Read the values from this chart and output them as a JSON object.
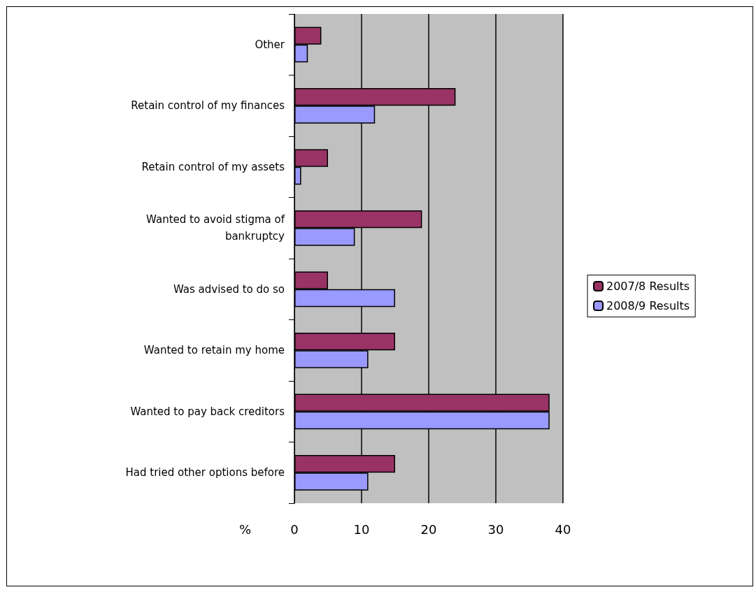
{
  "chart_data": {
    "type": "bar",
    "orientation": "horizontal",
    "xlabel": "%",
    "categories": [
      "Other",
      "Retain control of my finances",
      "Retain control of my assets",
      "Wanted to avoid stigma of bankruptcy",
      "Was advised to do so",
      "Wanted to retain my home",
      "Wanted to pay back creditors",
      "Had tried other options before"
    ],
    "series": [
      {
        "name": "2007/8 Results",
        "color": "#993366",
        "values": [
          4,
          24,
          5,
          19,
          5,
          15,
          38,
          15
        ]
      },
      {
        "name": "2008/9 Results",
        "color": "#9999ff",
        "values": [
          2,
          12,
          1,
          9,
          15,
          11,
          38,
          11
        ]
      }
    ],
    "xlim": [
      0,
      40
    ],
    "xticks": [
      0,
      10,
      20,
      30,
      40
    ],
    "grid": "x",
    "legend": "right"
  }
}
